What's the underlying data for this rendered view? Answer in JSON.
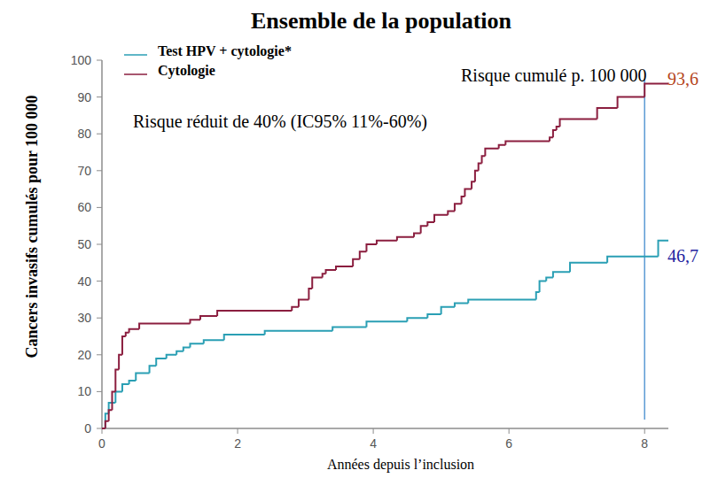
{
  "chart_data": {
    "type": "line",
    "title": "Ensemble de la population",
    "xlabel": "Années depuis l’inclusion",
    "ylabel": "Cancers invasifs cumulés pour 100 000",
    "xlim": [
      0,
      8.35
    ],
    "xticks": [
      0,
      2,
      4,
      6,
      8
    ],
    "ylim": [
      0,
      100
    ],
    "yticks": [
      0,
      10,
      20,
      30,
      40,
      50,
      60,
      70,
      80,
      90,
      100
    ],
    "grid": false,
    "legend": "top-left",
    "line_style": "step",
    "series": [
      {
        "name": "Test HPV + cytologie*",
        "color": "#2a9fb4",
        "x": [
          0,
          0.05,
          0.1,
          0.2,
          0.3,
          0.4,
          0.5,
          0.7,
          0.8,
          0.95,
          1.1,
          1.2,
          1.3,
          1.5,
          1.8,
          2.4,
          3.4,
          3.9,
          4.5,
          4.8,
          5.0,
          5.2,
          5.4,
          6.4,
          6.45,
          6.55,
          6.65,
          6.9,
          7.45,
          8.2
        ],
        "values": [
          0,
          4,
          7,
          10,
          12,
          13,
          15,
          17,
          19,
          20,
          21,
          22,
          23,
          24,
          25.5,
          26.5,
          27.5,
          29,
          30,
          31,
          33,
          34,
          35,
          37,
          40,
          41,
          42.5,
          45,
          46.7,
          51
        ]
      },
      {
        "name": "Cytologie",
        "color": "#8b1e3f",
        "x": [
          0,
          0.05,
          0.1,
          0.15,
          0.2,
          0.25,
          0.3,
          0.35,
          0.4,
          0.55,
          1.3,
          1.45,
          1.7,
          2.8,
          2.9,
          3.05,
          3.1,
          3.25,
          3.3,
          3.45,
          3.7,
          3.8,
          3.9,
          4.05,
          4.35,
          4.6,
          4.7,
          4.8,
          4.9,
          5.1,
          5.2,
          5.3,
          5.35,
          5.45,
          5.5,
          5.55,
          5.6,
          5.65,
          5.85,
          5.95,
          6.6,
          6.65,
          6.7,
          6.75,
          7.3,
          7.6,
          8.0
        ],
        "values": [
          0,
          2,
          5,
          10,
          16,
          20,
          25,
          26,
          27,
          28.5,
          29.5,
          30.5,
          32,
          33,
          35,
          38,
          41,
          42,
          43,
          44,
          46,
          48,
          50,
          51,
          52,
          53,
          55,
          56,
          58,
          59,
          61,
          63,
          65,
          67,
          70,
          72,
          74,
          76,
          77,
          78,
          79,
          81,
          82,
          84,
          87,
          90,
          93.6
        ]
      }
    ],
    "vline": {
      "x": 8,
      "ylim": [
        2.4,
        95
      ],
      "color": "#5b9bd5"
    },
    "annotations": [
      {
        "text": "Risque cumulé p. 100 000",
        "color": "#000000"
      },
      {
        "text": "93,6",
        "color": "#b5451b"
      },
      {
        "text": "Risque réduit de 40% (IC95% 11%-60%)",
        "color": "#000000"
      },
      {
        "text": "46,7",
        "color": "#1f1fa0"
      }
    ]
  }
}
